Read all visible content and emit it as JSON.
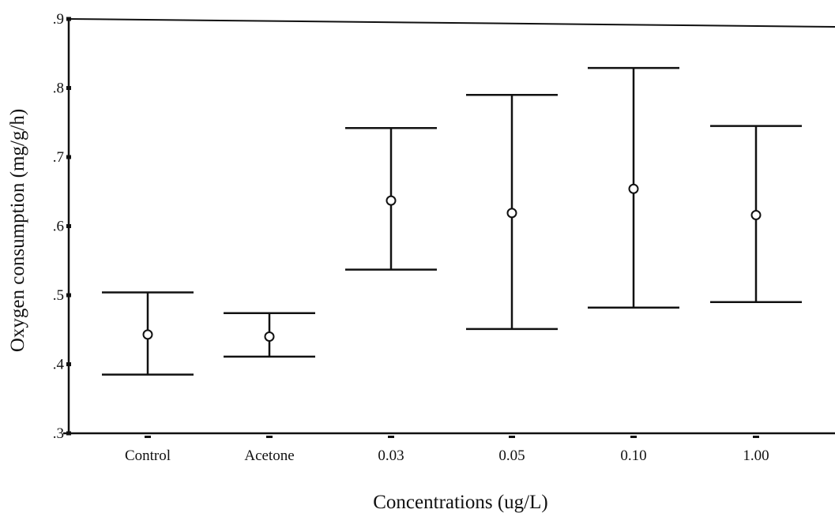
{
  "chart_data": {
    "type": "errorbar",
    "title": "",
    "xlabel": "Concentrations (ug/L)",
    "ylabel": "Oxygen consumption (mg/g/h)",
    "ylim": [
      0.3,
      0.9
    ],
    "yticks": [
      {
        "value": 0.3,
        "label": ".3"
      },
      {
        "value": 0.4,
        "label": ".4"
      },
      {
        "value": 0.5,
        "label": ".5"
      },
      {
        "value": 0.6,
        "label": ".6"
      },
      {
        "value": 0.7,
        "label": ".7"
      },
      {
        "value": 0.8,
        "label": ".8"
      },
      {
        "value": 0.9,
        "label": ".9"
      }
    ],
    "categories": [
      "Control",
      "Acetone",
      "0.03",
      "0.05",
      "0.10",
      "1.00"
    ],
    "means": [
      0.443,
      0.44,
      0.637,
      0.619,
      0.654,
      0.616
    ],
    "lower": [
      0.385,
      0.411,
      0.537,
      0.451,
      0.482,
      0.49
    ],
    "upper": [
      0.504,
      0.474,
      0.742,
      0.79,
      0.829,
      0.745
    ],
    "grid": false,
    "legend": "none",
    "colors": {
      "ink": "#111111",
      "background": "#ffffff"
    }
  }
}
